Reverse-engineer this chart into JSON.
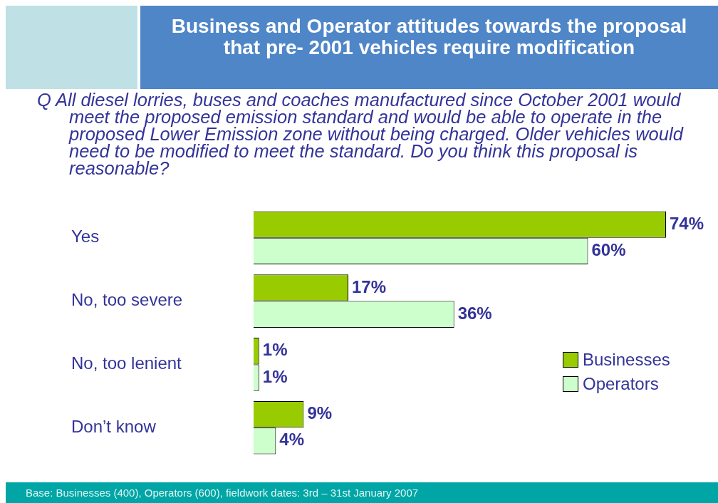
{
  "chart_data": {
    "type": "bar",
    "orientation": "horizontal",
    "title": "Business and Operator attitudes towards the proposal that pre- 2001 vehicles require modification",
    "subtitle": "Q All diesel lorries, buses and coaches manufactured since October 2001 would meet the proposed emission standard and would be able to operate in the proposed Lower Emission zone without being charged. Older vehicles would need to be modified to meet the standard. Do you think this proposal is reasonable?",
    "categories": [
      "Yes",
      "No, too severe",
      "No, too lenient",
      "Don’t know"
    ],
    "series": [
      {
        "name": "Businesses",
        "color": "#99cc00",
        "values": [
          74,
          17,
          1,
          9
        ],
        "value_labels": [
          "74%",
          "17%",
          "1%",
          "9%"
        ]
      },
      {
        "name": "Operators",
        "color": "#ccffcc",
        "values": [
          60,
          36,
          1,
          4
        ],
        "value_labels": [
          "60%",
          "36%",
          "1%",
          "4%"
        ]
      }
    ],
    "legend": "right",
    "grid": false,
    "tick_labels": "y",
    "annotations": [
      "Base: Businesses (400), Operators (600), fieldwork dates: 3rd – 31st January 2007"
    ]
  }
}
